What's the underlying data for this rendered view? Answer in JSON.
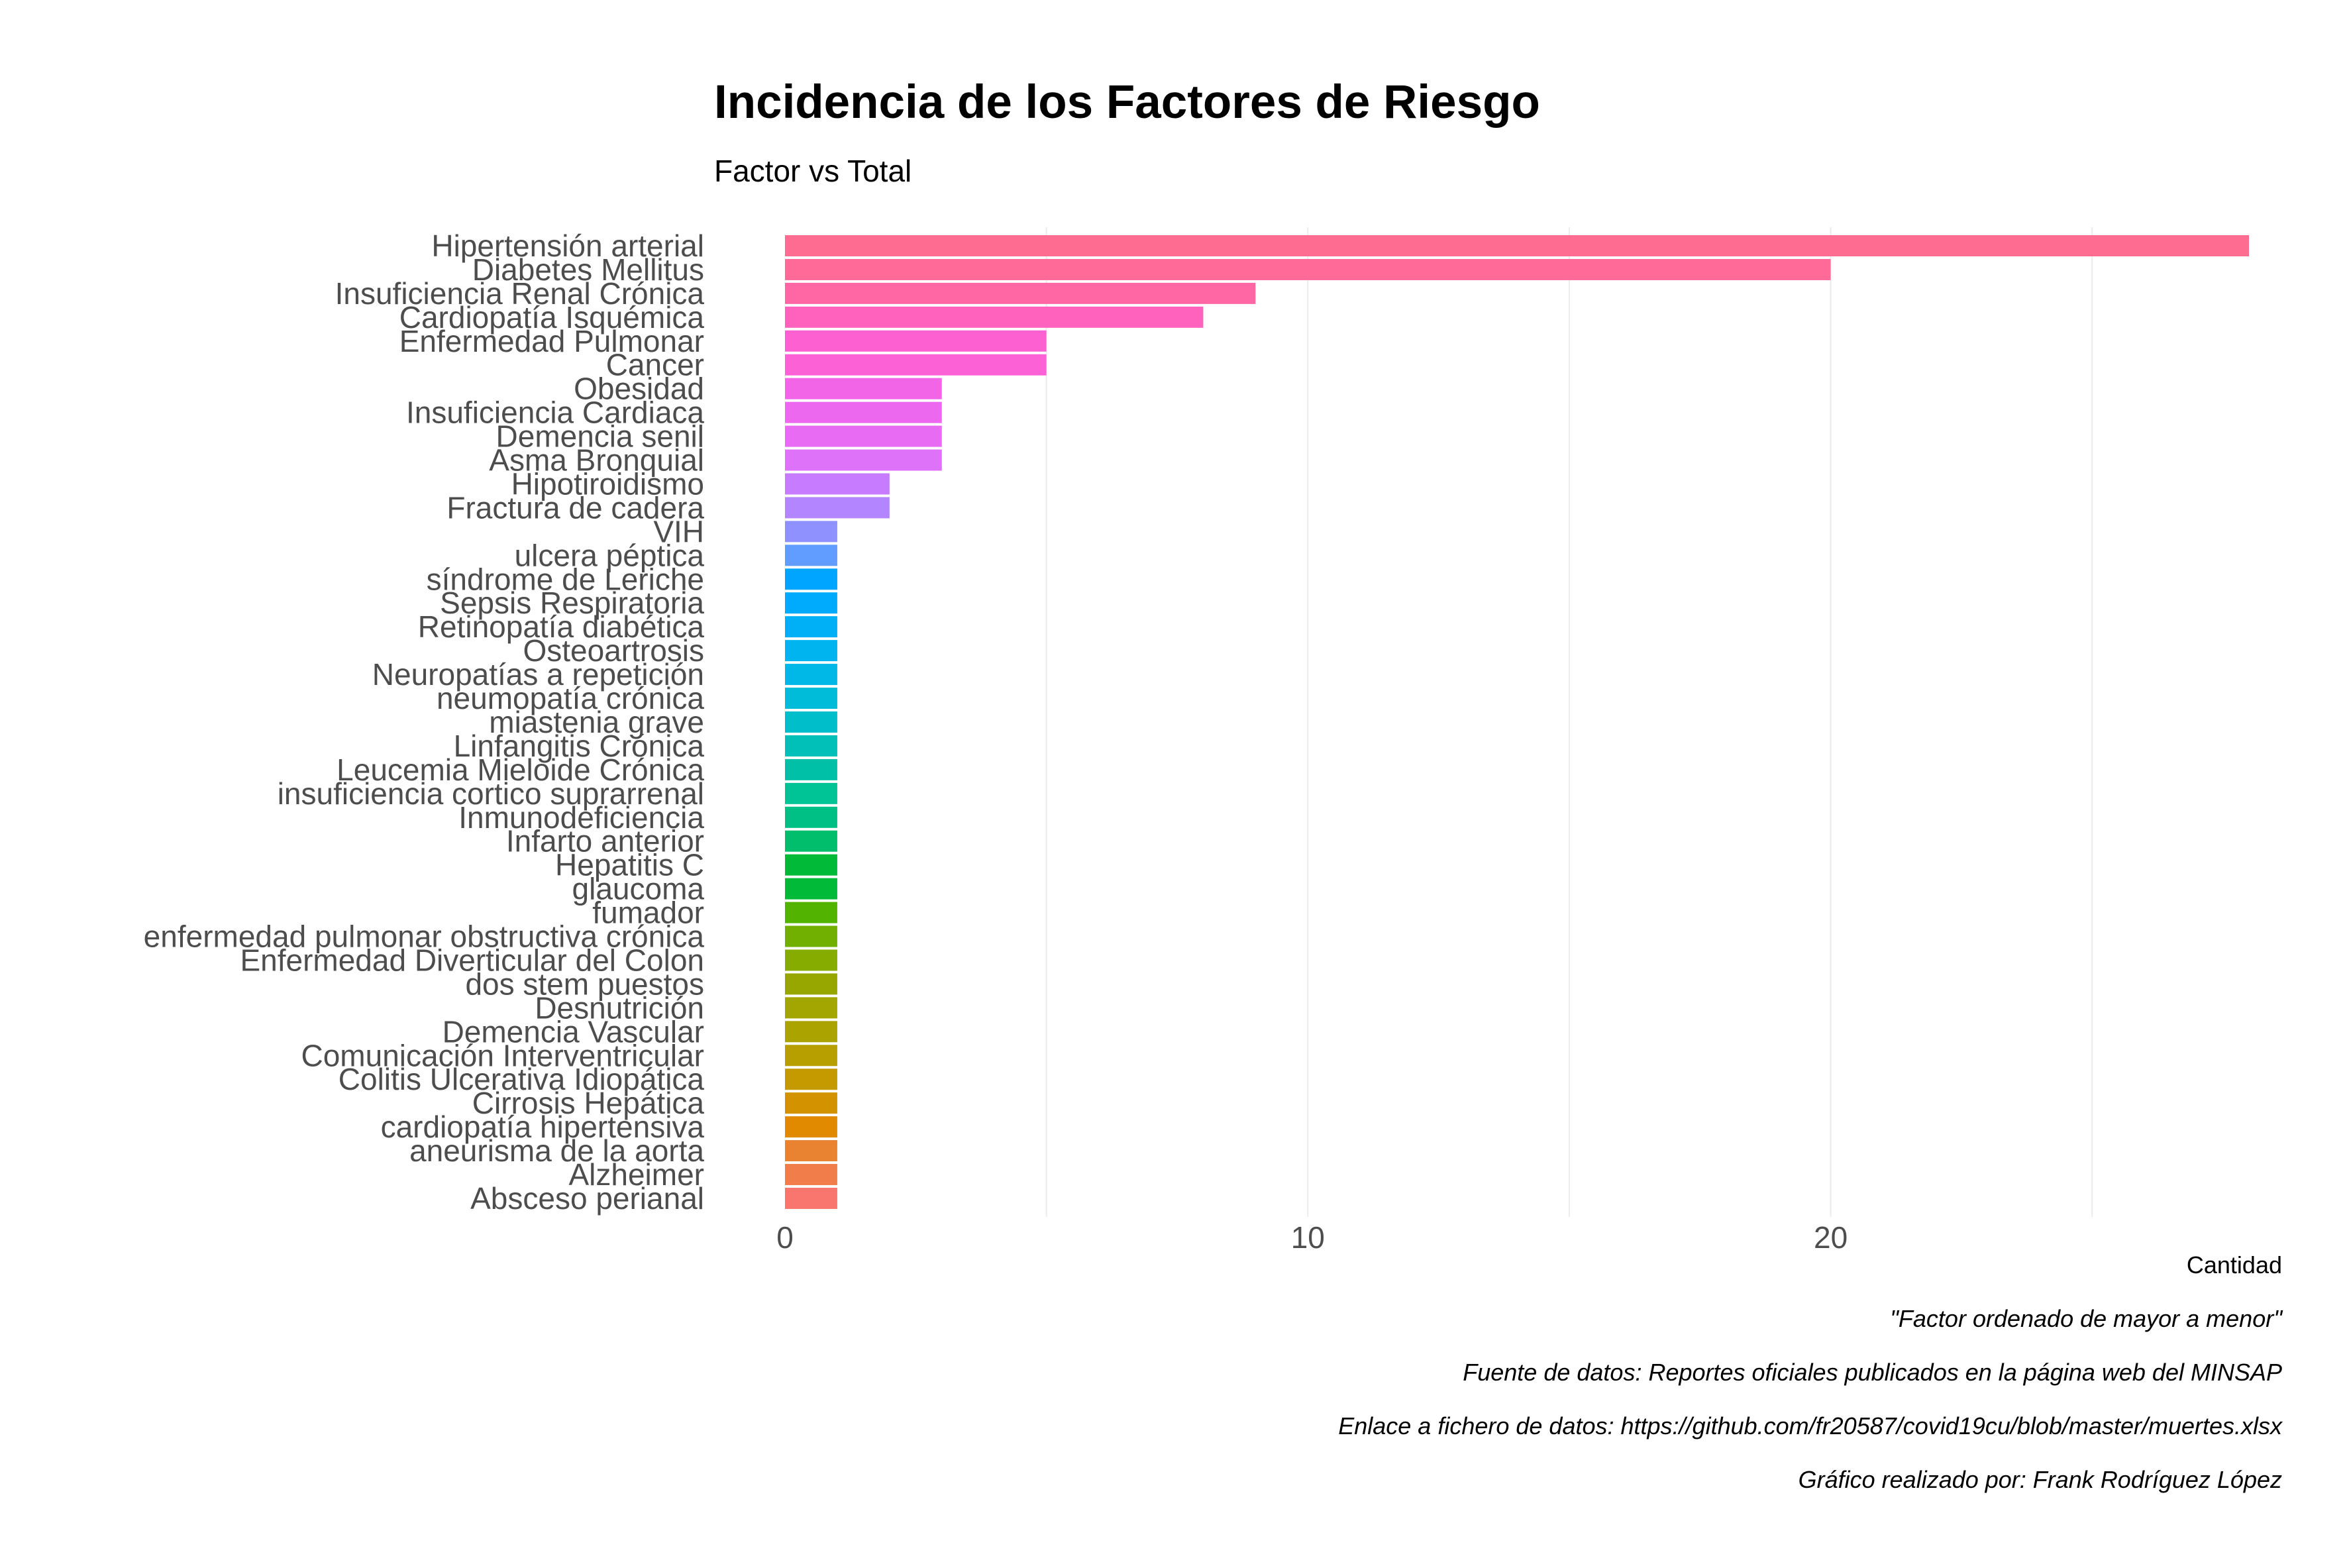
{
  "chart_data": {
    "type": "bar",
    "orientation": "horizontal",
    "title": "Incidencia de los Factores de Riesgo",
    "subtitle": "Factor vs Total",
    "xlabel": "Cantidad",
    "ylabel": "",
    "xlim": [
      0,
      28
    ],
    "xticks": [
      0,
      10,
      20
    ],
    "grid": true,
    "legend": "none",
    "categories": [
      "Hipertensión arterial",
      "Diabetes Mellitus",
      "Insuficiencia Renal Crónica",
      "Cardiopatía Isquémica",
      "Enfermedad Pulmonar",
      "Cancer",
      "Obesidad",
      "Insuficiencia Cardiaca",
      "Demencia senil",
      "Asma Bronquial",
      "Hipotiroidismo",
      "Fractura de cadera",
      "VIH",
      "ulcera péptica",
      "síndrome de Leriche",
      "Sepsis Respiratoria",
      "Retinopatía diabética",
      "Osteoartrosis",
      "Neuropatías a repetición",
      "neumopatía crónica",
      "miastenia grave",
      "Linfangitis Crónica",
      "Leucemia Mieloide Crónica",
      "insuficiencia cortico suprarrenal",
      "Inmunodeficiencia",
      "Infarto anterior",
      "Hepatitis C",
      "glaucoma",
      "fumador",
      "enfermedad pulmonar obstructiva crónica",
      "Enfermedad Diverticular del Colon",
      "dos stem puestos",
      "Desnutrición",
      "Demencia Vascular",
      "Comunicación Interventricular",
      "Colitis Ulcerativa Idiopática",
      "Cirrosis Hepática",
      "cardiopatía hipertensiva",
      "aneurisma de la aorta",
      "Alzheimer",
      "Absceso perianal"
    ],
    "values": [
      28,
      20,
      9,
      8,
      5,
      5,
      3,
      3,
      3,
      3,
      2,
      2,
      1,
      1,
      1,
      1,
      1,
      1,
      1,
      1,
      1,
      1,
      1,
      1,
      1,
      1,
      1,
      1,
      1,
      1,
      1,
      1,
      1,
      1,
      1,
      1,
      1,
      1,
      1,
      1,
      1
    ],
    "colors": [
      "#FF6C91",
      "#FF6A98",
      "#FF67A4",
      "#FF62BC",
      "#FD61D1",
      "#FC61D5",
      "#F265E7",
      "#EB68EF",
      "#E76BF3",
      "#DE72F8",
      "#C77CFF",
      "#B385FF",
      "#8F91FF",
      "#619CFF",
      "#00A5FF",
      "#00ABFD",
      "#00B0F6",
      "#00B4EF",
      "#00B8E7",
      "#00BCD8",
      "#00BECA",
      "#00C0B8",
      "#00C1A7",
      "#00C396",
      "#00C085",
      "#00BE6C",
      "#00BA38",
      "#00BA38",
      "#53B400",
      "#72B000",
      "#86AC00",
      "#98A600",
      "#A3A500",
      "#ABA300",
      "#B79F00",
      "#C49A00",
      "#D39200",
      "#E18A00",
      "#EA8331",
      "#F17D4B",
      "#F8766D"
    ],
    "captions": [
      "\"Factor ordenado de mayor a menor\"",
      "Fuente de datos: Reportes oficiales publicados en la página web del MINSAP",
      "Enlace a fichero de datos: https://github.com/fr20587/covid19cu/blob/master/muertes.xlsx",
      "Gráfico realizado por: Frank Rodríguez López"
    ]
  }
}
